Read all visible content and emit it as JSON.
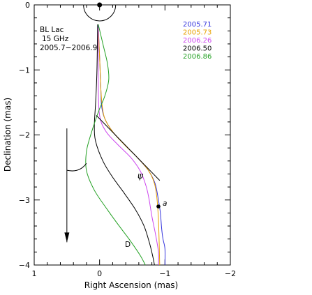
{
  "chart_data": {
    "type": "line",
    "xlabel": "Right Ascension  (mas)",
    "ylabel": "Declination (mas)",
    "xlim": [
      1,
      -2
    ],
    "ylim": [
      -4,
      0
    ],
    "xticks": [
      1,
      0,
      -1,
      -2
    ],
    "yticks": [
      0,
      -1,
      -2,
      -3,
      -4
    ],
    "grid": false,
    "legend_position": "top-right",
    "annotations": {
      "source": "BL Lac",
      "frequency": "15 GHz",
      "epochs": "2005.7−2006.9",
      "arrow_label": "D",
      "angle_label": "ψ",
      "point_label": "a"
    },
    "core_point": [
      0,
      0
    ],
    "point_a": [
      -0.9,
      -3.1
    ],
    "arrow_D": {
      "from": [
        0.5,
        -1.9
      ],
      "to": [
        0.5,
        -3.65
      ]
    },
    "tangent_line": {
      "from": [
        0.05,
        -1.7
      ],
      "to": [
        -0.92,
        -2.7
      ]
    },
    "series": [
      {
        "name": "2005.71",
        "color": "#3333dd",
        "x": [
          0.02,
          0.0,
          -0.02,
          -0.03,
          -0.08,
          -0.2,
          -0.38,
          -0.58,
          -0.75,
          -0.85,
          -0.9,
          -0.93,
          -0.95,
          -0.97,
          -1.0,
          -1.0
        ],
        "y": [
          -0.3,
          -0.8,
          -1.3,
          -1.55,
          -1.75,
          -1.95,
          -2.15,
          -2.35,
          -2.55,
          -2.75,
          -3.0,
          -3.2,
          -3.45,
          -3.6,
          -3.75,
          -4.0
        ]
      },
      {
        "name": "2005.73",
        "color": "#e8a200",
        "x": [
          0.02,
          0.0,
          -0.02,
          -0.04,
          -0.08,
          -0.2,
          -0.38,
          -0.58,
          -0.75,
          -0.84,
          -0.88,
          -0.9,
          -0.91,
          -0.92
        ],
        "y": [
          -0.35,
          -0.8,
          -1.3,
          -1.55,
          -1.75,
          -1.95,
          -2.15,
          -2.35,
          -2.55,
          -2.75,
          -3.0,
          -3.3,
          -3.6,
          -4.0
        ]
      },
      {
        "name": "2006.26",
        "color": "#cc44ee",
        "x": [
          0.02,
          0.02,
          0.0,
          -0.1,
          -0.28,
          -0.48,
          -0.62,
          -0.7,
          -0.75,
          -0.8,
          -0.86,
          -0.9,
          -0.9
        ],
        "y": [
          -0.35,
          -1.2,
          -1.7,
          -1.95,
          -2.15,
          -2.35,
          -2.55,
          -2.75,
          -2.95,
          -3.25,
          -3.55,
          -3.8,
          -4.0
        ]
      },
      {
        "name": "2006.50",
        "color": "#000000",
        "x": [
          0.03,
          0.04,
          0.06,
          0.08,
          0.06,
          -0.05,
          -0.2,
          -0.38,
          -0.55,
          -0.68,
          -0.76,
          -0.81,
          -0.84
        ],
        "y": [
          -0.3,
          -1.0,
          -1.5,
          -1.85,
          -2.1,
          -2.4,
          -2.65,
          -2.9,
          -3.15,
          -3.4,
          -3.65,
          -3.85,
          -4.0
        ]
      },
      {
        "name": "2006.86",
        "color": "#22a022",
        "x": [
          0.02,
          -0.05,
          -0.12,
          -0.14,
          -0.08,
          0.02,
          0.12,
          0.2,
          0.2,
          0.08,
          -0.12,
          -0.3,
          -0.45,
          -0.62,
          -0.7
        ],
        "y": [
          -0.3,
          -0.6,
          -0.9,
          -1.15,
          -1.4,
          -1.65,
          -1.95,
          -2.25,
          -2.55,
          -2.85,
          -3.15,
          -3.4,
          -3.6,
          -3.85,
          -4.0
        ]
      }
    ]
  }
}
